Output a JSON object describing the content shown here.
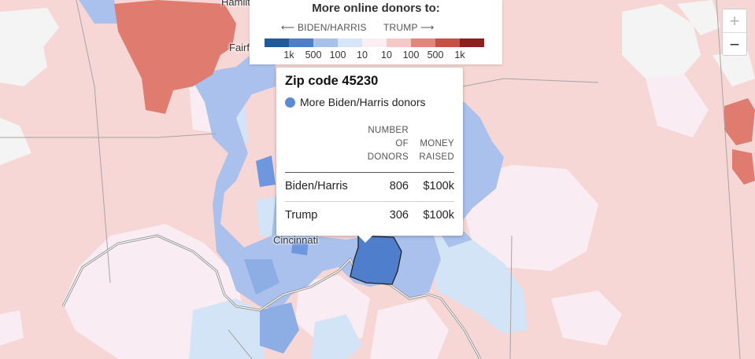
{
  "legend": {
    "title": "More online donors to:",
    "left_label": "BIDEN/HARRIS",
    "right_label": "TRUMP",
    "left_arrow": "⟵",
    "right_arrow": "⟶",
    "swatches": [
      "#1f5b9c",
      "#4b7fc9",
      "#a8c1ec",
      "#d6e5f7",
      "#fbeff4",
      "#f6c9c6",
      "#e3857c",
      "#c95144",
      "#8f1f1f"
    ],
    "ticks": [
      "1k",
      "500",
      "100",
      "10",
      "10",
      "100",
      "500",
      "1k"
    ]
  },
  "zoom": {
    "in_label": "+",
    "out_label": "−"
  },
  "tooltip": {
    "title": "Zip code 45230",
    "lead": "More Biden/Harris donors",
    "lead_color": "#5c8bd4",
    "col_donors_1": "NUMBER",
    "col_donors_2": "OF",
    "col_donors_3": "DONORS",
    "col_money_1": "MONEY",
    "col_money_2": "RAISED",
    "rows": [
      {
        "name": "Biden/Harris",
        "donors": "806",
        "money": "$100k"
      },
      {
        "name": "Trump",
        "donors": "306",
        "money": "$100k"
      }
    ]
  },
  "places": {
    "hamilton": "Hamilton",
    "fairfield": "Fairfield",
    "cincinnati": "Cincinnati"
  },
  "colors": {
    "base_red": "#f7d7d5",
    "pale_red": "#f9e2e1",
    "pink": "#f9ecf3",
    "light_blue": "#d4e4f7",
    "blue": "#a9c1ec",
    "mid_blue": "#8daee4",
    "selected": "#4f7fcc",
    "red": "#e07b70",
    "white": "#f4f4f4",
    "river": "#8f8f8f"
  }
}
